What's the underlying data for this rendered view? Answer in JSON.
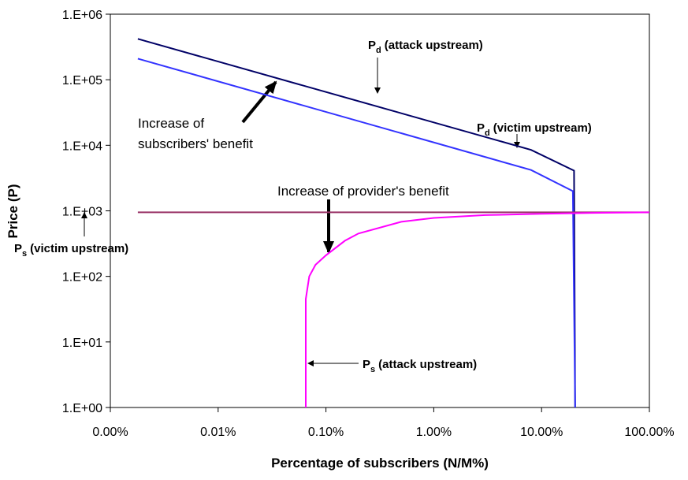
{
  "chart_data": {
    "type": "line",
    "x_label": "Percentage of subscribers (N/M%)",
    "y_label": "Price (P)",
    "xlog": true,
    "ylog": true,
    "xlim": [
      0.001,
      100
    ],
    "ylim": [
      1,
      1000000
    ],
    "xticks": [
      {
        "value": 0.001,
        "label": "0.00%"
      },
      {
        "value": 0.01,
        "label": "0.01%"
      },
      {
        "value": 0.1,
        "label": "0.10%"
      },
      {
        "value": 1,
        "label": "1.00%"
      },
      {
        "value": 10,
        "label": "10.00%"
      },
      {
        "value": 100,
        "label": "100.00%"
      }
    ],
    "yticks": [
      {
        "value": 1,
        "label": "1.E+00"
      },
      {
        "value": 10,
        "label": "1.E+01"
      },
      {
        "value": 100,
        "label": "1.E+02"
      },
      {
        "value": 1000,
        "label": "1.E+03"
      },
      {
        "value": 10000,
        "label": "1.E+04"
      },
      {
        "value": 100000,
        "label": "1.E+05"
      },
      {
        "value": 1000000,
        "label": "1.E+06"
      }
    ],
    "series": [
      {
        "color": "#000066",
        "x": [
          0.0018,
          8,
          20,
          20.5
        ],
        "values": [
          420000,
          8500,
          4100,
          1
        ]
      },
      {
        "color": "#3333ff",
        "x": [
          0.0018,
          8,
          19.5,
          20.5
        ],
        "values": [
          210000,
          4200,
          2000,
          1
        ]
      },
      {
        "color": "#993366",
        "x": [
          0.0018,
          100
        ],
        "values": [
          950,
          950
        ]
      },
      {
        "color": "#ff00ff",
        "x": [
          0.065,
          0.065,
          0.07,
          0.08,
          0.1,
          0.15,
          0.2,
          0.5,
          1,
          3,
          10,
          30,
          100
        ],
        "values": [
          1,
          45,
          100,
          150,
          210,
          350,
          450,
          680,
          780,
          860,
          900,
          930,
          950
        ]
      }
    ],
    "annotations": [
      {
        "main": "P",
        "sub": "d",
        "rest": "(attack upstream)"
      },
      {
        "main": "P",
        "sub": "d",
        "rest": "(victim upstream)"
      },
      {
        "lines": [
          "Increase of",
          "subscribers' benefit"
        ]
      },
      {
        "lines": [
          "Increase of provider's benefit"
        ]
      },
      {
        "main": "P",
        "sub": "s",
        "rest": "(victim upstream)"
      },
      {
        "main": "P",
        "sub": "s",
        "rest": "(attack upstream)"
      }
    ]
  }
}
